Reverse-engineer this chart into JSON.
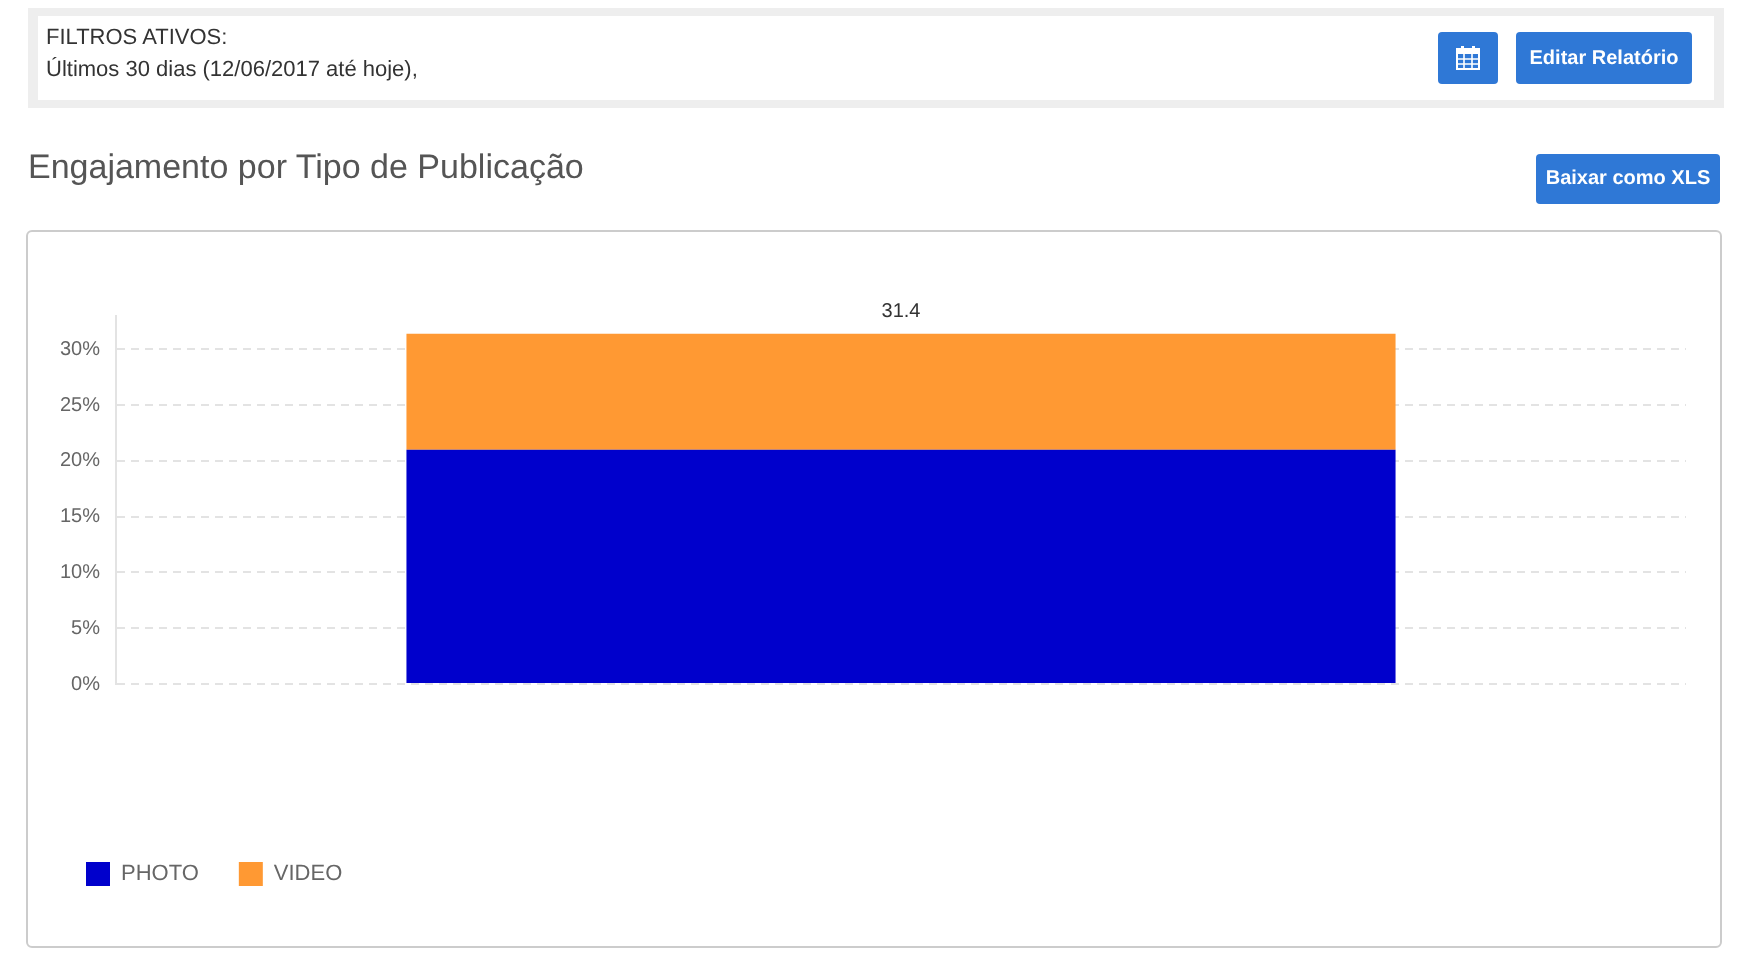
{
  "chart_data": {
    "type": "bar",
    "title": "Engajamento por Tipo de Publicação",
    "categories": [
      null
    ],
    "series": [
      {
        "name": "PHOTO",
        "color": "#0000cc",
        "values": [
          21
        ]
      },
      {
        "name": "VIDEO",
        "color": "#ff9933",
        "values": [
          10.4
        ]
      }
    ],
    "stacked": true,
    "totals": [
      "31.4"
    ],
    "ylim": [
      0,
      33
    ],
    "yticks": [
      {
        "value": 0,
        "label": "0%"
      },
      {
        "value": 5,
        "label": "5%"
      },
      {
        "value": 10,
        "label": "10%"
      },
      {
        "value": 15,
        "label": "15%"
      },
      {
        "value": 20,
        "label": "20%"
      },
      {
        "value": 25,
        "label": "25%"
      },
      {
        "value": 30,
        "label": "30%"
      }
    ],
    "grid": "y",
    "legend": "bottom left",
    "annotations": [
      "FILTROS ATIVOS:",
      "Últimos 30 dias (12/06/2017 até hoje),",
      "Editar Relatório",
      "Baixar como XLS"
    ]
  }
}
